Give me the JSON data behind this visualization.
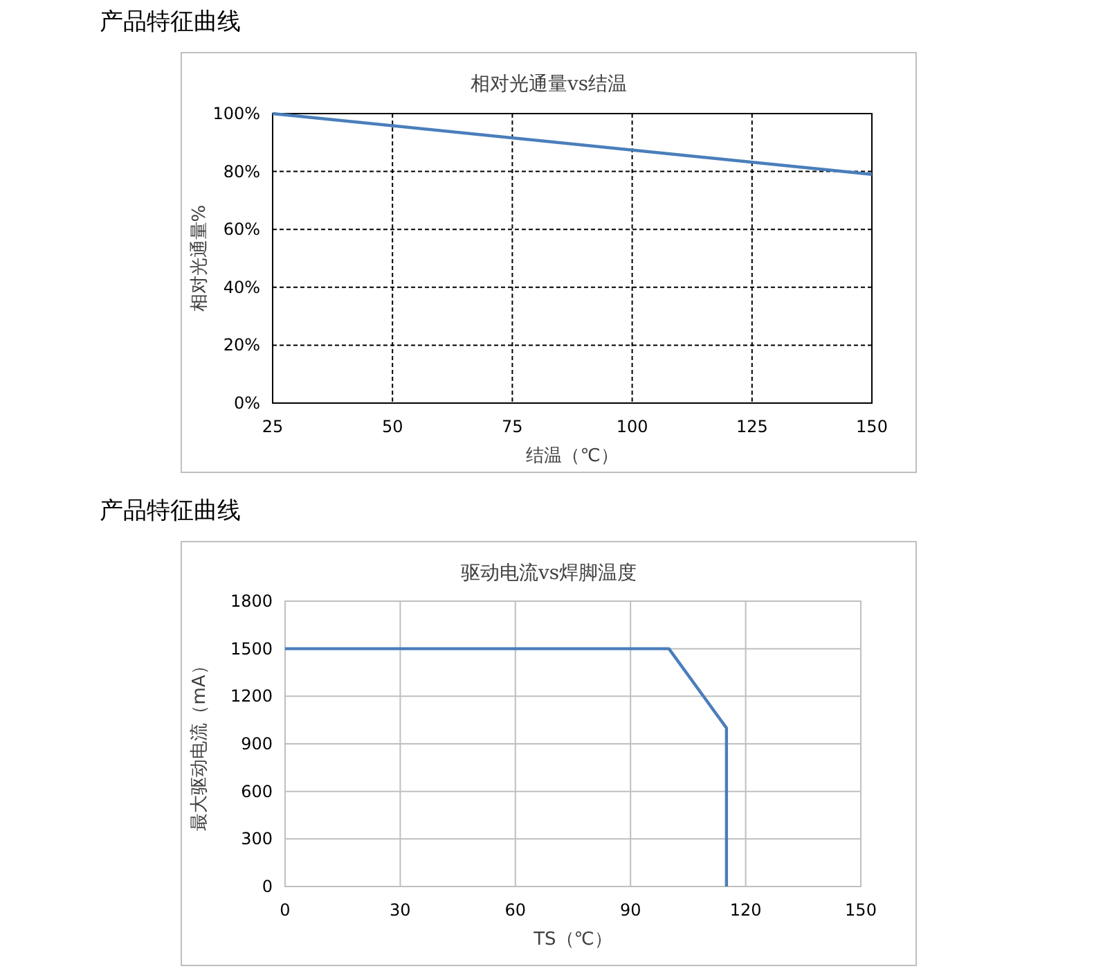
{
  "chart_data": [
    {
      "type": "line",
      "annotations": [
        "产品特征曲线"
      ],
      "title": "相对光通量vs结温",
      "xlabel": "结温（℃）",
      "ylabel": "相对光通量%",
      "x": [
        25,
        150
      ],
      "series": [
        {
          "color": "#4a7ebb",
          "values": [
            100,
            79
          ]
        }
      ],
      "xlim": [
        25,
        150
      ],
      "xticks": [
        25,
        50,
        75,
        100,
        125,
        150
      ],
      "ylim": [
        0,
        100
      ],
      "yticks": [
        {
          "value": 0,
          "label": "0%"
        },
        {
          "value": 20,
          "label": "20%"
        },
        {
          "value": 40,
          "label": "40%"
        },
        {
          "value": 60,
          "label": "60%"
        },
        {
          "value": 80,
          "label": "80%"
        },
        {
          "value": 100,
          "label": "100%"
        }
      ],
      "grid": true,
      "line_style": "solid",
      "marker": "none"
    },
    {
      "type": "line",
      "annotations": [
        "产品特征曲线"
      ],
      "title": "驱动电流vs焊脚温度",
      "xlabel": "TS（℃）",
      "ylabel": "最大驱动电流（mA）",
      "x": [
        0,
        100,
        115,
        115
      ],
      "series": [
        {
          "color": "#4a7ebb",
          "values": [
            1500,
            1500,
            1000,
            0
          ]
        }
      ],
      "xlim": [
        0,
        150
      ],
      "xticks": [
        0,
        30,
        60,
        90,
        120,
        150
      ],
      "ylim": [
        0,
        1800
      ],
      "yticks": [
        0,
        300,
        600,
        900,
        1200,
        1500,
        1800
      ],
      "grid": true,
      "line_style": "solid",
      "marker": "none"
    }
  ]
}
